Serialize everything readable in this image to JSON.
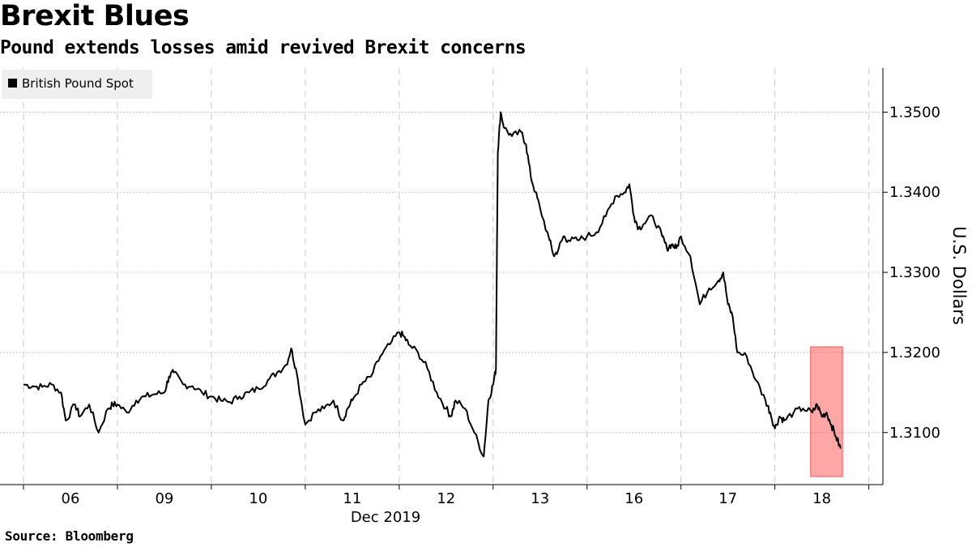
{
  "header": {
    "title": "Brexit Blues",
    "subtitle": "Pound extends losses amid revived Brexit concerns"
  },
  "footer": {
    "source": "Source: Bloomberg"
  },
  "chart_data": {
    "type": "line",
    "xlabel": "Dec 2019",
    "ylabel": "U.S. Dollars",
    "legend": {
      "position": "top-left"
    },
    "x_ticks": [
      "06",
      "09",
      "10",
      "11",
      "12",
      "13",
      "16",
      "17",
      "18"
    ],
    "y_ticks": [
      "1.3100",
      "1.3200",
      "1.3300",
      "1.3400",
      "1.3500"
    ],
    "ylim": [
      1.3035,
      1.3555
    ],
    "grid": true,
    "x_unit": "trading day index (0 = Dec 05 open; 9 = Dec 18 open)",
    "xlim": [
      -0.25,
      9.15
    ],
    "highlight": {
      "x_range": [
        8.38,
        8.72
      ],
      "y_range": [
        1.3045,
        1.3207
      ],
      "color": "#ff0000"
    },
    "series": [
      {
        "name": "British Pound Spot",
        "color": "#000000",
        "x": [
          0,
          0.1,
          0.2,
          0.3,
          0.4,
          0.45,
          0.55,
          0.6,
          0.7,
          0.8,
          0.9,
          0.95,
          1.0,
          1.1,
          1.2,
          1.3,
          1.4,
          1.5,
          1.55,
          1.6,
          1.7,
          1.8,
          1.9,
          2.0,
          2.1,
          2.2,
          2.3,
          2.4,
          2.5,
          2.6,
          2.7,
          2.8,
          2.85,
          2.9,
          3.0,
          3.1,
          3.2,
          3.3,
          3.4,
          3.45,
          3.5,
          3.6,
          3.7,
          3.8,
          3.9,
          4.0,
          4.05,
          4.1,
          4.2,
          4.3,
          4.4,
          4.5,
          4.55,
          4.6,
          4.7,
          4.8,
          4.9,
          4.95,
          5.0,
          5.03,
          5.05,
          5.08,
          5.12,
          5.2,
          5.3,
          5.35,
          5.4,
          5.45,
          5.5,
          5.6,
          5.65,
          5.7,
          5.75,
          5.8,
          5.9,
          6.0,
          6.1,
          6.2,
          6.3,
          6.4,
          6.45,
          6.5,
          6.55,
          6.6,
          6.7,
          6.8,
          6.85,
          6.9,
          6.95,
          7.0,
          7.1,
          7.2,
          7.3,
          7.4,
          7.45,
          7.5,
          7.55,
          7.6,
          7.7,
          7.8,
          7.9,
          7.95,
          8.0,
          8.05,
          8.1,
          8.2,
          8.3,
          8.4,
          8.45,
          8.5,
          8.55,
          8.6,
          8.65,
          8.7
        ],
        "y": [
          1.316,
          1.3158,
          1.3157,
          1.316,
          1.315,
          1.3115,
          1.3135,
          1.312,
          1.3135,
          1.31,
          1.313,
          1.3135,
          1.3135,
          1.3125,
          1.314,
          1.3145,
          1.3148,
          1.315,
          1.317,
          1.3175,
          1.316,
          1.3158,
          1.315,
          1.3145,
          1.314,
          1.3138,
          1.3145,
          1.315,
          1.3155,
          1.3165,
          1.3175,
          1.3185,
          1.3205,
          1.318,
          1.311,
          1.3125,
          1.313,
          1.314,
          1.3115,
          1.313,
          1.314,
          1.316,
          1.317,
          1.3195,
          1.321,
          1.3225,
          1.322,
          1.321,
          1.32,
          1.318,
          1.315,
          1.313,
          1.312,
          1.314,
          1.313,
          1.31,
          1.307,
          1.314,
          1.316,
          1.318,
          1.345,
          1.35,
          1.348,
          1.347,
          1.3475,
          1.346,
          1.342,
          1.34,
          1.338,
          1.334,
          1.332,
          1.333,
          1.3345,
          1.334,
          1.334,
          1.3345,
          1.335,
          1.337,
          1.3395,
          1.34,
          1.341,
          1.337,
          1.3355,
          1.336,
          1.337,
          1.3345,
          1.333,
          1.3335,
          1.333,
          1.3345,
          1.332,
          1.326,
          1.328,
          1.329,
          1.33,
          1.326,
          1.3245,
          1.32,
          1.3195,
          1.3165,
          1.314,
          1.3125,
          1.3105,
          1.312,
          1.3115,
          1.3125,
          1.313,
          1.3125,
          1.3135,
          1.312,
          1.3125,
          1.311,
          1.3095,
          1.308
        ]
      }
    ]
  }
}
